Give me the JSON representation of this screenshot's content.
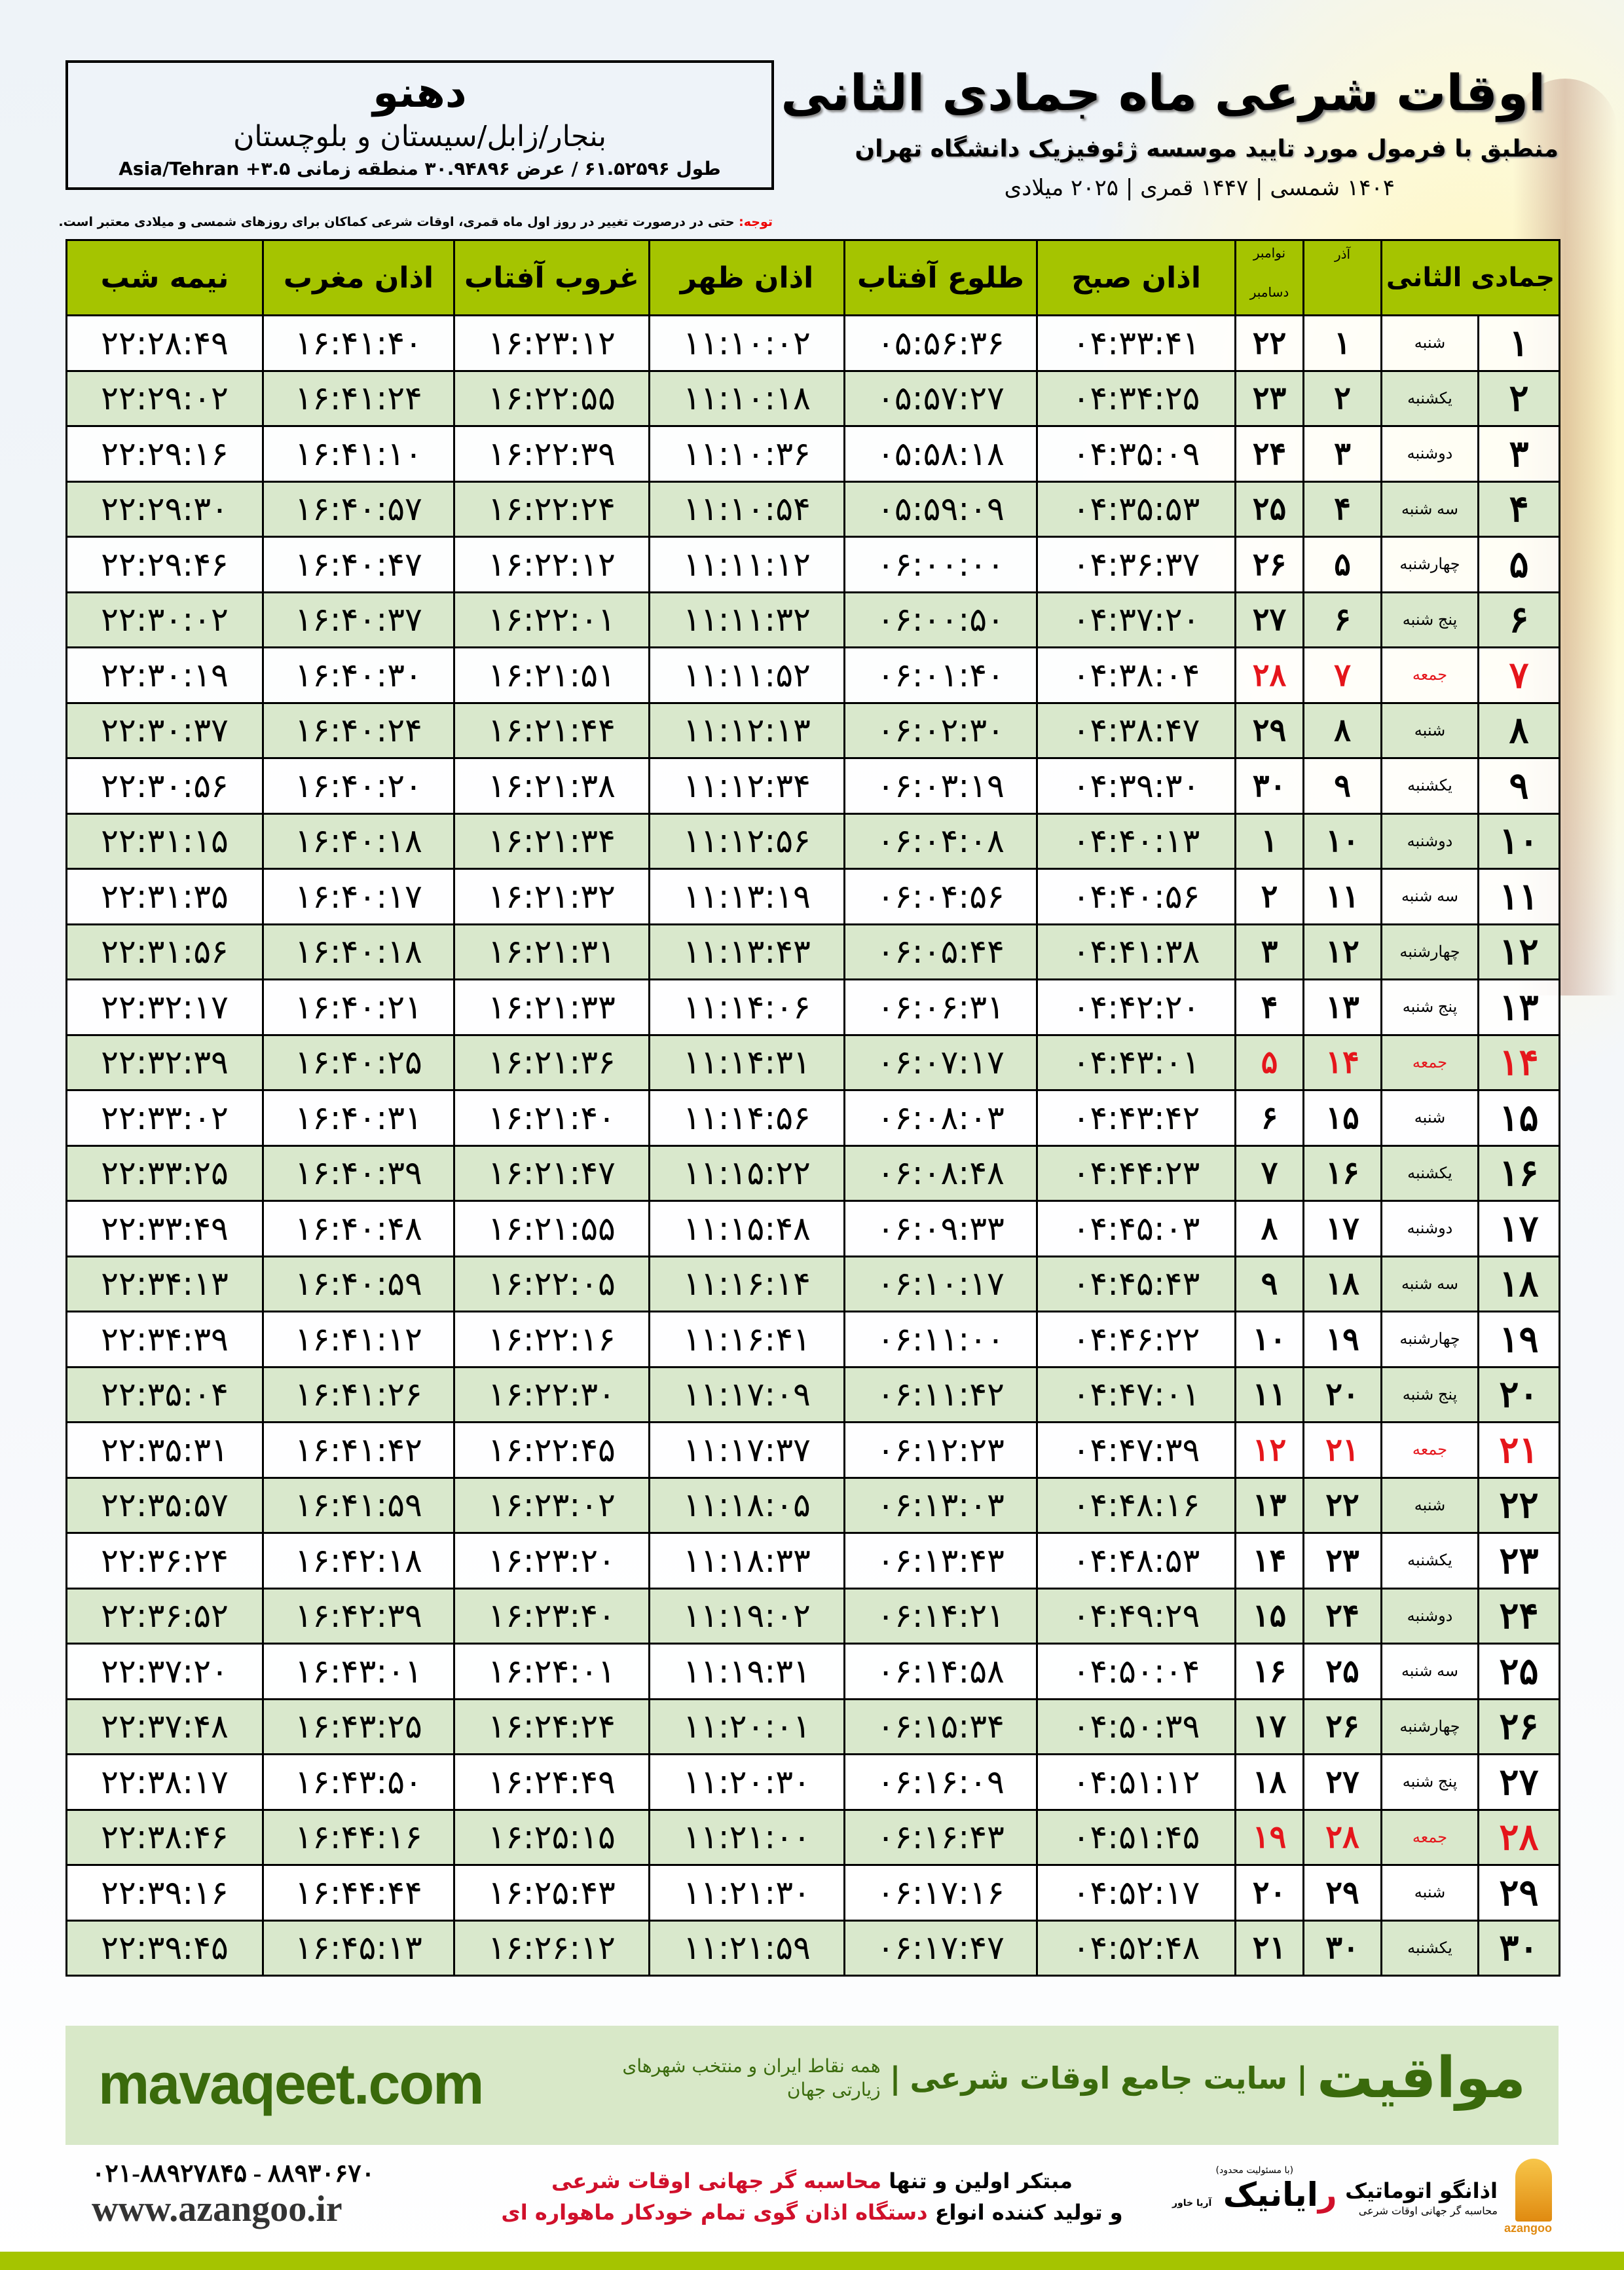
{
  "header": {
    "title": "اوقات شرعی ماه جمادی الثانی",
    "subtitle": "منطبق با فرمول مورد تایید موسسه ژئوفیزیک دانشگاه تهران",
    "years": "۱۴۰۴ شمسی | ۱۴۴۷ قمری | ۲۰۲۵ میلادی"
  },
  "location": {
    "city": "دهنو",
    "region": "بنجار/زابل/سیستان و بلوچستان",
    "coords": "طول ۶۱.۵۲۵۹۶ / عرض ۳۰.۹۴۸۹۶ منطقه زمانی ۳.۵+ Asia/Tehran"
  },
  "note": {
    "label": "توجه:",
    "text": " حتی در درصورت تغییر در روز اول ماه قمری، اوقات شرعی کماکان برای روزهای شمسی و میلادی معتبر است."
  },
  "table": {
    "headers": {
      "hijri": "جمادی الثانی",
      "azar": "آذر",
      "greg_top": "نوامبر",
      "greg_bottom": "دسامبر",
      "sobh": "اذان صبح",
      "tolu": "طلوع آفتاب",
      "zohr": "اذان ظهر",
      "ghorub": "غروب آفتاب",
      "maghreb": "اذان مغرب",
      "nimeshab": "نیمه شب"
    },
    "colors": {
      "header": "#a5c400",
      "even_row": "#d9e8cc",
      "friday": "#e5151b"
    },
    "rows": [
      [
        "۱",
        "شنبه",
        "۱",
        "۲۲",
        "۰۴:۳۳:۴۱",
        "۰۵:۵۶:۳۶",
        "۱۱:۱۰:۰۲",
        "۱۶:۲۳:۱۲",
        "۱۶:۴۱:۴۰",
        "۲۲:۲۸:۴۹"
      ],
      [
        "۲",
        "یکشنبه",
        "۲",
        "۲۳",
        "۰۴:۳۴:۲۵",
        "۰۵:۵۷:۲۷",
        "۱۱:۱۰:۱۸",
        "۱۶:۲۲:۵۵",
        "۱۶:۴۱:۲۴",
        "۲۲:۲۹:۰۲"
      ],
      [
        "۳",
        "دوشنبه",
        "۳",
        "۲۴",
        "۰۴:۳۵:۰۹",
        "۰۵:۵۸:۱۸",
        "۱۱:۱۰:۳۶",
        "۱۶:۲۲:۳۹",
        "۱۶:۴۱:۱۰",
        "۲۲:۲۹:۱۶"
      ],
      [
        "۴",
        "سه شنبه",
        "۴",
        "۲۵",
        "۰۴:۳۵:۵۳",
        "۰۵:۵۹:۰۹",
        "۱۱:۱۰:۵۴",
        "۱۶:۲۲:۲۴",
        "۱۶:۴۰:۵۷",
        "۲۲:۲۹:۳۰"
      ],
      [
        "۵",
        "چهارشنبه",
        "۵",
        "۲۶",
        "۰۴:۳۶:۳۷",
        "۰۶:۰۰:۰۰",
        "۱۱:۱۱:۱۲",
        "۱۶:۲۲:۱۲",
        "۱۶:۴۰:۴۷",
        "۲۲:۲۹:۴۶"
      ],
      [
        "۶",
        "پنج شنبه",
        "۶",
        "۲۷",
        "۰۴:۳۷:۲۰",
        "۰۶:۰۰:۵۰",
        "۱۱:۱۱:۳۲",
        "۱۶:۲۲:۰۱",
        "۱۶:۴۰:۳۷",
        "۲۲:۳۰:۰۲"
      ],
      [
        "۷",
        "جمعه",
        "۷",
        "۲۸",
        "۰۴:۳۸:۰۴",
        "۰۶:۰۱:۴۰",
        "۱۱:۱۱:۵۲",
        "۱۶:۲۱:۵۱",
        "۱۶:۴۰:۳۰",
        "۲۲:۳۰:۱۹"
      ],
      [
        "۸",
        "شنبه",
        "۸",
        "۲۹",
        "۰۴:۳۸:۴۷",
        "۰۶:۰۲:۳۰",
        "۱۱:۱۲:۱۳",
        "۱۶:۲۱:۴۴",
        "۱۶:۴۰:۲۴",
        "۲۲:۳۰:۳۷"
      ],
      [
        "۹",
        "یکشنبه",
        "۹",
        "۳۰",
        "۰۴:۳۹:۳۰",
        "۰۶:۰۳:۱۹",
        "۱۱:۱۲:۳۴",
        "۱۶:۲۱:۳۸",
        "۱۶:۴۰:۲۰",
        "۲۲:۳۰:۵۶"
      ],
      [
        "۱۰",
        "دوشنبه",
        "۱۰",
        "۱",
        "۰۴:۴۰:۱۳",
        "۰۶:۰۴:۰۸",
        "۱۱:۱۲:۵۶",
        "۱۶:۲۱:۳۴",
        "۱۶:۴۰:۱۸",
        "۲۲:۳۱:۱۵"
      ],
      [
        "۱۱",
        "سه شنبه",
        "۱۱",
        "۲",
        "۰۴:۴۰:۵۶",
        "۰۶:۰۴:۵۶",
        "۱۱:۱۳:۱۹",
        "۱۶:۲۱:۳۲",
        "۱۶:۴۰:۱۷",
        "۲۲:۳۱:۳۵"
      ],
      [
        "۱۲",
        "چهارشنبه",
        "۱۲",
        "۳",
        "۰۴:۴۱:۳۸",
        "۰۶:۰۵:۴۴",
        "۱۱:۱۳:۴۳",
        "۱۶:۲۱:۳۱",
        "۱۶:۴۰:۱۸",
        "۲۲:۳۱:۵۶"
      ],
      [
        "۱۳",
        "پنج شنبه",
        "۱۳",
        "۴",
        "۰۴:۴۲:۲۰",
        "۰۶:۰۶:۳۱",
        "۱۱:۱۴:۰۶",
        "۱۶:۲۱:۳۳",
        "۱۶:۴۰:۲۱",
        "۲۲:۳۲:۱۷"
      ],
      [
        "۱۴",
        "جمعه",
        "۱۴",
        "۵",
        "۰۴:۴۳:۰۱",
        "۰۶:۰۷:۱۷",
        "۱۱:۱۴:۳۱",
        "۱۶:۲۱:۳۶",
        "۱۶:۴۰:۲۵",
        "۲۲:۳۲:۳۹"
      ],
      [
        "۱۵",
        "شنبه",
        "۱۵",
        "۶",
        "۰۴:۴۳:۴۲",
        "۰۶:۰۸:۰۳",
        "۱۱:۱۴:۵۶",
        "۱۶:۲۱:۴۰",
        "۱۶:۴۰:۳۱",
        "۲۲:۳۳:۰۲"
      ],
      [
        "۱۶",
        "یکشنبه",
        "۱۶",
        "۷",
        "۰۴:۴۴:۲۳",
        "۰۶:۰۸:۴۸",
        "۱۱:۱۵:۲۲",
        "۱۶:۲۱:۴۷",
        "۱۶:۴۰:۳۹",
        "۲۲:۳۳:۲۵"
      ],
      [
        "۱۷",
        "دوشنبه",
        "۱۷",
        "۸",
        "۰۴:۴۵:۰۳",
        "۰۶:۰۹:۳۳",
        "۱۱:۱۵:۴۸",
        "۱۶:۲۱:۵۵",
        "۱۶:۴۰:۴۸",
        "۲۲:۳۳:۴۹"
      ],
      [
        "۱۸",
        "سه شنبه",
        "۱۸",
        "۹",
        "۰۴:۴۵:۴۳",
        "۰۶:۱۰:۱۷",
        "۱۱:۱۶:۱۴",
        "۱۶:۲۲:۰۵",
        "۱۶:۴۰:۵۹",
        "۲۲:۳۴:۱۳"
      ],
      [
        "۱۹",
        "چهارشنبه",
        "۱۹",
        "۱۰",
        "۰۴:۴۶:۲۲",
        "۰۶:۱۱:۰۰",
        "۱۱:۱۶:۴۱",
        "۱۶:۲۲:۱۶",
        "۱۶:۴۱:۱۲",
        "۲۲:۳۴:۳۹"
      ],
      [
        "۲۰",
        "پنج شنبه",
        "۲۰",
        "۱۱",
        "۰۴:۴۷:۰۱",
        "۰۶:۱۱:۴۲",
        "۱۱:۱۷:۰۹",
        "۱۶:۲۲:۳۰",
        "۱۶:۴۱:۲۶",
        "۲۲:۳۵:۰۴"
      ],
      [
        "۲۱",
        "جمعه",
        "۲۱",
        "۱۲",
        "۰۴:۴۷:۳۹",
        "۰۶:۱۲:۲۳",
        "۱۱:۱۷:۳۷",
        "۱۶:۲۲:۴۵",
        "۱۶:۴۱:۴۲",
        "۲۲:۳۵:۳۱"
      ],
      [
        "۲۲",
        "شنبه",
        "۲۲",
        "۱۳",
        "۰۴:۴۸:۱۶",
        "۰۶:۱۳:۰۳",
        "۱۱:۱۸:۰۵",
        "۱۶:۲۳:۰۲",
        "۱۶:۴۱:۵۹",
        "۲۲:۳۵:۵۷"
      ],
      [
        "۲۳",
        "یکشنبه",
        "۲۳",
        "۱۴",
        "۰۴:۴۸:۵۳",
        "۰۶:۱۳:۴۳",
        "۱۱:۱۸:۳۳",
        "۱۶:۲۳:۲۰",
        "۱۶:۴۲:۱۸",
        "۲۲:۳۶:۲۴"
      ],
      [
        "۲۴",
        "دوشنبه",
        "۲۴",
        "۱۵",
        "۰۴:۴۹:۲۹",
        "۰۶:۱۴:۲۱",
        "۱۱:۱۹:۰۲",
        "۱۶:۲۳:۴۰",
        "۱۶:۴۲:۳۹",
        "۲۲:۳۶:۵۲"
      ],
      [
        "۲۵",
        "سه شنبه",
        "۲۵",
        "۱۶",
        "۰۴:۵۰:۰۴",
        "۰۶:۱۴:۵۸",
        "۱۱:۱۹:۳۱",
        "۱۶:۲۴:۰۱",
        "۱۶:۴۳:۰۱",
        "۲۲:۳۷:۲۰"
      ],
      [
        "۲۶",
        "چهارشنبه",
        "۲۶",
        "۱۷",
        "۰۴:۵۰:۳۹",
        "۰۶:۱۵:۳۴",
        "۱۱:۲۰:۰۱",
        "۱۶:۲۴:۲۴",
        "۱۶:۴۳:۲۵",
        "۲۲:۳۷:۴۸"
      ],
      [
        "۲۷",
        "پنج شنبه",
        "۲۷",
        "۱۸",
        "۰۴:۵۱:۱۲",
        "۰۶:۱۶:۰۹",
        "۱۱:۲۰:۳۰",
        "۱۶:۲۴:۴۹",
        "۱۶:۴۳:۵۰",
        "۲۲:۳۸:۱۷"
      ],
      [
        "۲۸",
        "جمعه",
        "۲۸",
        "۱۹",
        "۰۴:۵۱:۴۵",
        "۰۶:۱۶:۴۳",
        "۱۱:۲۱:۰۰",
        "۱۶:۲۵:۱۵",
        "۱۶:۴۴:۱۶",
        "۲۲:۳۸:۴۶"
      ],
      [
        "۲۹",
        "شنبه",
        "۲۹",
        "۲۰",
        "۰۴:۵۲:۱۷",
        "۰۶:۱۷:۱۶",
        "۱۱:۲۱:۳۰",
        "۱۶:۲۵:۴۳",
        "۱۶:۴۴:۴۴",
        "۲۲:۳۹:۱۶"
      ],
      [
        "۳۰",
        "یکشنبه",
        "۳۰",
        "۲۱",
        "۰۴:۵۲:۴۸",
        "۰۶:۱۷:۴۷",
        "۱۱:۲۱:۵۹",
        "۱۶:۲۶:۱۲",
        "۱۶:۴۵:۱۳",
        "۲۲:۳۹:۴۵"
      ]
    ]
  },
  "footer": {
    "site_url": "mavaqeet.com",
    "brand": "مواقیت",
    "brand_tagline": "سایت جامع اوقات شرعی",
    "brand_sub": "همه نقاط ایران و منتخب شهرهای زیارتی جهان",
    "phones": "۰۲۱-۸۸۹۲۷۸۴۵ - ۸۸۹۳۰۶۷۰",
    "website": "www.azangoo.ir",
    "tag1_a": "مبتکر اولین و تنها ",
    "tag1_b": "محاسبه گر جهانی اوقات شرعی",
    "tag2_a": "و تولید کننده انواع ",
    "tag2_b": "دستگاه اذان گوی تمام خودکار ماهواره ای",
    "logo1_small": "(با مسئولیت محدود)",
    "logo1_name_r": "ر",
    "logo1_name": "ایانیک",
    "logo1_side": "آریا خاور",
    "logo2_name": "اذانگو اتوماتیک",
    "logo2_sub": "محاسبه گر جهانی اوقات شرعی",
    "logo2_latin": "azangoo"
  }
}
